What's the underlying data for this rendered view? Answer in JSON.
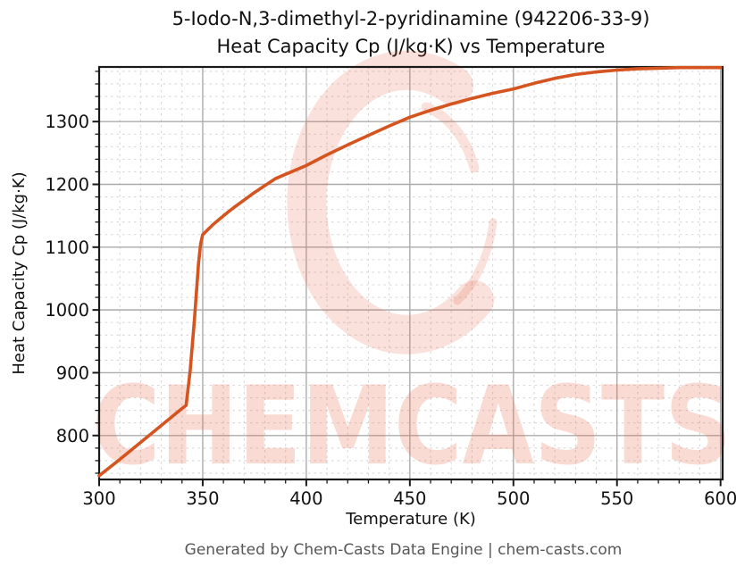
{
  "chart_data": {
    "type": "line",
    "title_line1": "5-Iodo-N,3-dimethyl-2-pyridinamine (942206-33-9)",
    "title_line2": "Heat Capacity Cp (J/kg·K) vs Temperature",
    "xlabel": "Temperature (K)",
    "ylabel": "Heat Capacity Cp (J/kg·K)",
    "xlim": [
      300,
      601
    ],
    "ylim": [
      730,
      1387
    ],
    "x_ticks": [
      300,
      350,
      400,
      450,
      500,
      550,
      600
    ],
    "y_ticks": [
      800,
      900,
      1000,
      1100,
      1200,
      1300
    ],
    "x_minor_step": 10,
    "y_minor_step": 20,
    "grid": true,
    "legend": "none",
    "series": [
      {
        "name": "Heat Capacity Cp (J/kg·K)",
        "color": "#d5541f",
        "points": [
          [
            300,
            736
          ],
          [
            310,
            762
          ],
          [
            320,
            789
          ],
          [
            330,
            816
          ],
          [
            340,
            843
          ],
          [
            342,
            848
          ],
          [
            344,
            905
          ],
          [
            346,
            985
          ],
          [
            348,
            1075
          ],
          [
            349,
            1105
          ],
          [
            350,
            1120
          ],
          [
            355,
            1136
          ],
          [
            360,
            1150
          ],
          [
            365,
            1163
          ],
          [
            370,
            1175
          ],
          [
            375,
            1187
          ],
          [
            380,
            1198
          ],
          [
            385,
            1209
          ],
          [
            390,
            1216
          ],
          [
            395,
            1223
          ],
          [
            400,
            1230
          ],
          [
            410,
            1247
          ],
          [
            420,
            1263
          ],
          [
            430,
            1278
          ],
          [
            440,
            1293
          ],
          [
            450,
            1307
          ],
          [
            460,
            1318
          ],
          [
            470,
            1328
          ],
          [
            480,
            1337
          ],
          [
            490,
            1345
          ],
          [
            500,
            1352
          ],
          [
            510,
            1361
          ],
          [
            520,
            1369
          ],
          [
            530,
            1375
          ],
          [
            540,
            1379
          ],
          [
            550,
            1382
          ],
          [
            560,
            1384
          ],
          [
            570,
            1385
          ],
          [
            580,
            1386
          ],
          [
            590,
            1386
          ],
          [
            600,
            1386
          ]
        ]
      }
    ]
  },
  "watermark": {
    "text": "CHEMCASTS",
    "color": "#e8674a"
  },
  "footer": {
    "text": "Generated by Chem-Casts Data Engine | chem-casts.com"
  },
  "style": {
    "line_color": "#d5541f",
    "grid_major_color": "#ababab",
    "grid_minor_color": "#d8d8d8",
    "spine_color": "#1a1a1a",
    "tick_color": "#1a1a1a",
    "tick_label_color": "#111111",
    "title_color": "#111111",
    "footer_color": "#575757"
  }
}
